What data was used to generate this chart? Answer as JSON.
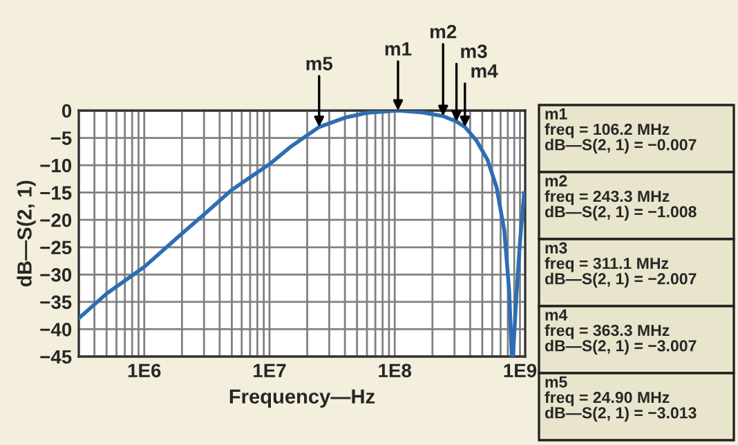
{
  "chart_data": {
    "type": "line",
    "xlabel": "Frequency—Hz",
    "ylabel": "dB—S(2, 1)",
    "log": "x",
    "grid": true,
    "legend": false,
    "marker": "none",
    "line_style": "solid",
    "xlim": [
      300000,
      1100000000
    ],
    "xticks": [
      {
        "value": 1000000,
        "label": "1E6"
      },
      {
        "value": 10000000,
        "label": "1E7"
      },
      {
        "value": 100000000,
        "label": "1E8"
      },
      {
        "value": 1000000000,
        "label": "1E9"
      }
    ],
    "ylim": [
      -45,
      0
    ],
    "yticks": [
      {
        "value": 0,
        "label": "0"
      },
      {
        "value": -5,
        "label": "−5"
      },
      {
        "value": -10,
        "label": "−10"
      },
      {
        "value": -15,
        "label": "−15"
      },
      {
        "value": -20,
        "label": "−20"
      },
      {
        "value": -25,
        "label": "−25"
      },
      {
        "value": -30,
        "label": "−30"
      },
      {
        "value": -35,
        "label": "−35"
      },
      {
        "value": -40,
        "label": "−40"
      },
      {
        "value": -45,
        "label": "−45"
      }
    ],
    "x": [
      300000,
      500000,
      1000000,
      2000000,
      3000000,
      5000000,
      10000000,
      15000000,
      24900000,
      40000000,
      60000000,
      106200000,
      160000000,
      243300000,
      311100000,
      363300000,
      450000000,
      550000000,
      650000000,
      750000000,
      820000000,
      860000000,
      880000000,
      930000000,
      1000000000,
      1080000000
    ],
    "series": [
      {
        "color": "#2e6db4",
        "values": [
          -38,
          -33.5,
          -28.6,
          -22.5,
          -19,
          -14.5,
          -9.8,
          -6.5,
          -3.013,
          -1.3,
          -0.4,
          -0.007,
          -0.3,
          -1.008,
          -2.007,
          -3.007,
          -5.5,
          -9,
          -14,
          -22,
          -33,
          -45,
          -45,
          -35,
          -24,
          -15
        ]
      }
    ],
    "annotations": [
      {
        "text": "m1",
        "x": 106200000,
        "y": -0.007
      },
      {
        "text": "m2",
        "x": 243300000,
        "y": -1.008
      },
      {
        "text": "m3",
        "x": 311100000,
        "y": -2.007
      },
      {
        "text": "m4",
        "x": 363300000,
        "y": -3.007
      },
      {
        "text": "m5",
        "x": 24900000,
        "y": -3.013
      },
      "m1\nfreq = 106.2 MHz\ndB—S(2, 1) = −0.007",
      "m2\nfreq = 243.3 MHz\ndB—S(2, 1) = −1.008",
      "m3\nfreq = 311.1 MHz\ndB—S(2, 1) = −2.007",
      "m4\nfreq = 363.3 MHz\ndB—S(2, 1) = −3.007",
      "m5\nfreq = 24.90 MHz\ndB—S(2, 1) = −3.013"
    ]
  }
}
